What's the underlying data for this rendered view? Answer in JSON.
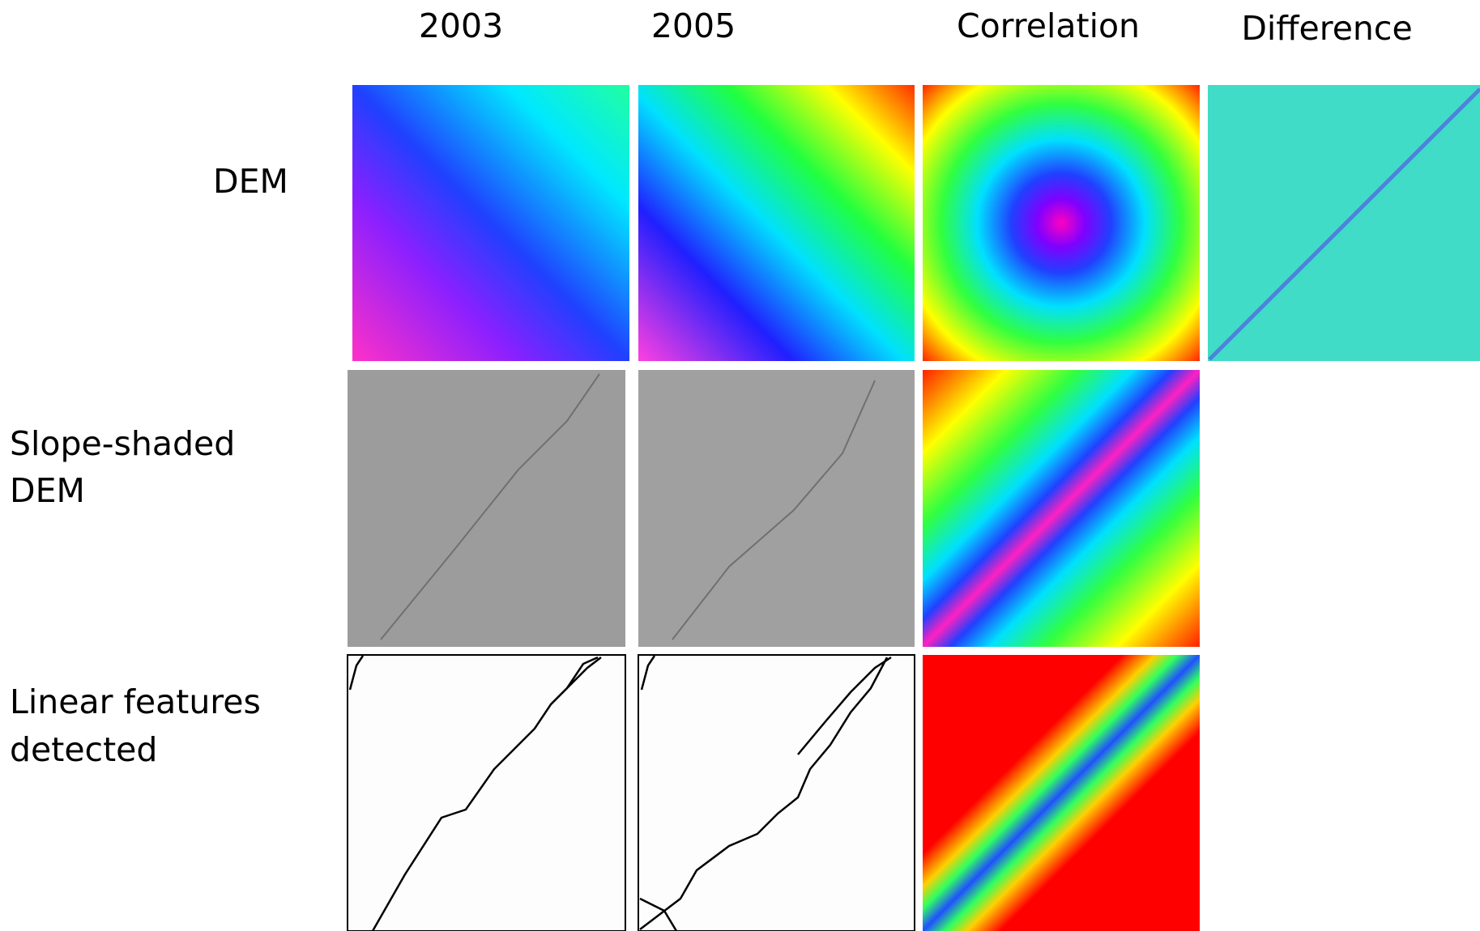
{
  "columns": [
    "2003",
    "2005",
    "Correlation",
    "Difference"
  ],
  "rows": [
    [
      "DEM"
    ],
    [
      "Slope-shaded",
      "DEM"
    ],
    [
      "Linear features",
      "detected"
    ]
  ]
}
